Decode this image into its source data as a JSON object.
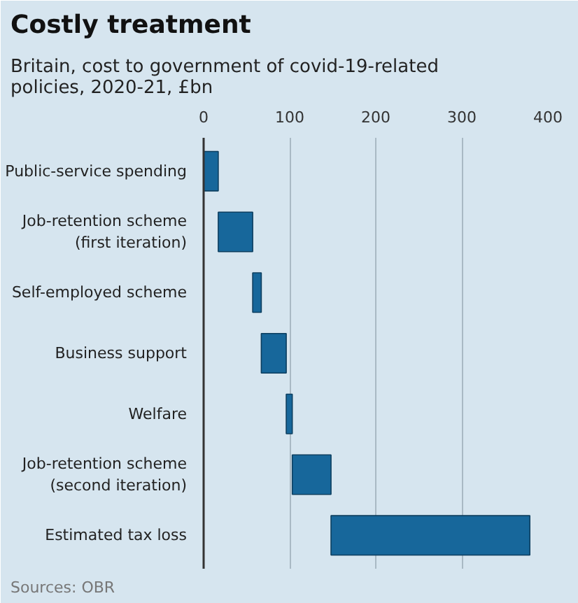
{
  "chart_data": {
    "type": "bar",
    "orientation": "horizontal",
    "title": "Costly treatment",
    "subtitle": "Britain, cost to government of covid-19-related\npolicies, 2020-21, £bn",
    "categories": [
      "Public-service spending",
      "Job-retention scheme\n(first iteration)",
      "Self-employed scheme",
      "Business support",
      "Welfare",
      "Job-retention scheme\n(second iteration)",
      "Estimated tax loss"
    ],
    "base": [
      0,
      17,
      57,
      67,
      96,
      103,
      148
    ],
    "values": [
      17,
      40,
      10,
      29,
      7,
      45,
      231
    ],
    "color": "#17679b",
    "xlim": [
      0,
      400
    ],
    "xticks": [
      0,
      100,
      200,
      300,
      400
    ],
    "grid": "x",
    "annotations": [
      "Sources: OBR"
    ]
  }
}
